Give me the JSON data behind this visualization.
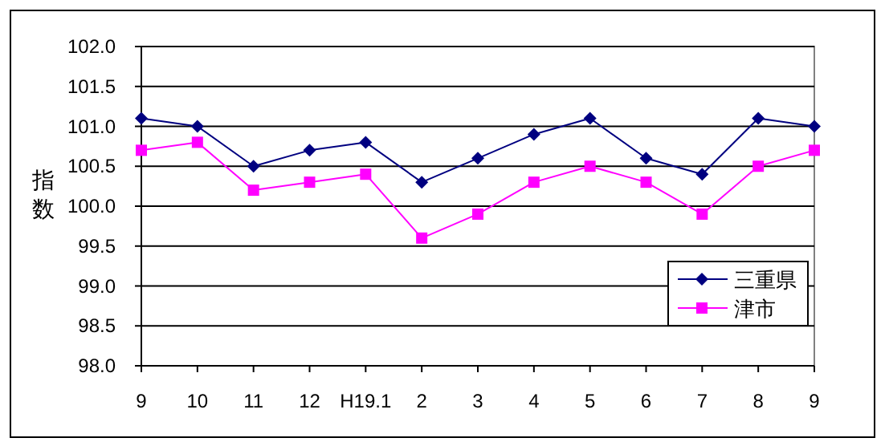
{
  "chart_data": {
    "type": "line",
    "ylabel": "指数",
    "categories": [
      "9",
      "10",
      "11",
      "12",
      "H19.1",
      "2",
      "3",
      "4",
      "5",
      "6",
      "7",
      "8",
      "9"
    ],
    "series": [
      {
        "name": "三重県",
        "color": "#000080",
        "marker": "diamond",
        "values": [
          101.1,
          101.0,
          100.5,
          100.7,
          100.8,
          100.3,
          100.6,
          100.9,
          101.1,
          100.6,
          100.4,
          101.1,
          101.0
        ]
      },
      {
        "name": "津市",
        "color": "#ff00ff",
        "marker": "square",
        "values": [
          100.7,
          100.8,
          100.2,
          100.3,
          100.4,
          99.6,
          99.9,
          100.3,
          100.5,
          100.3,
          99.9,
          100.5,
          100.7
        ]
      }
    ],
    "ylim": [
      98,
      102
    ],
    "yticks": [
      {
        "value": 98,
        "label": "98.0"
      },
      {
        "value": 98.5,
        "label": "98.5"
      },
      {
        "value": 99,
        "label": "99.0"
      },
      {
        "value": 99.5,
        "label": "99.5"
      },
      {
        "value": 100,
        "label": "100.0"
      },
      {
        "value": 100.5,
        "label": "100.5"
      },
      {
        "value": 101,
        "label": "101.0"
      },
      {
        "value": 101.5,
        "label": "101.5"
      },
      {
        "value": 102,
        "label": "102.0"
      }
    ],
    "grid": "y",
    "legend": "bottom right"
  }
}
